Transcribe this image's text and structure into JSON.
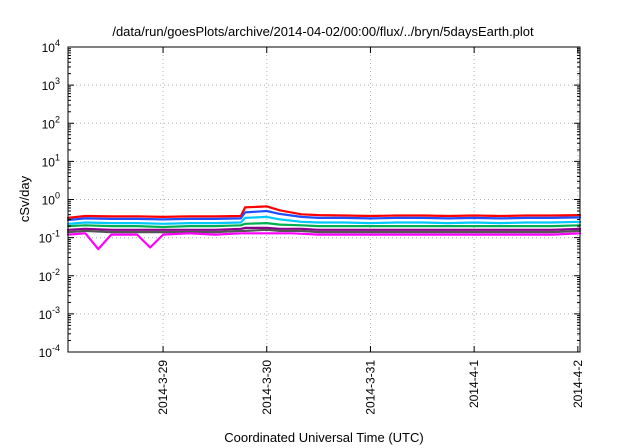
{
  "chart_data": {
    "type": "line",
    "title": "/data/run/goesPlots/archive/2014-04-02/00:00/flux/../bryn/5daysEarth.plot",
    "xlabel": "Coordinated Universal Time (UTC)",
    "ylabel": "cSv/day",
    "yscale": "log",
    "ylim": [
      0.0001,
      10000
    ],
    "y_ticks": [
      {
        "base": "10",
        "exp": "-4"
      },
      {
        "base": "10",
        "exp": "-3"
      },
      {
        "base": "10",
        "exp": "-2"
      },
      {
        "base": "10",
        "exp": "-1"
      },
      {
        "base": "10",
        "exp": "0"
      },
      {
        "base": "10",
        "exp": "1"
      },
      {
        "base": "10",
        "exp": "2"
      },
      {
        "base": "10",
        "exp": "3"
      },
      {
        "base": "10",
        "exp": "4"
      }
    ],
    "xlim": [
      "2014-03-28T02:00",
      "2014-04-02T00:30"
    ],
    "x_ticks": [
      "2014-3-29",
      "2014-3-30",
      "2014-3-31",
      "2014-4-1",
      "2014-4-2"
    ],
    "grid": true,
    "legend": "none",
    "series": [
      {
        "color": "#ff0000",
        "x": [
          "2014-03-28T02:00",
          "2014-03-28T06:00",
          "2014-03-28T12:00",
          "2014-03-28T18:00",
          "2014-03-29T00:00",
          "2014-03-29T06:00",
          "2014-03-29T12:00",
          "2014-03-29T18:00",
          "2014-03-29T19:00",
          "2014-03-30T00:00",
          "2014-03-30T03:00",
          "2014-03-30T08:00",
          "2014-03-30T12:00",
          "2014-03-30T18:00",
          "2014-03-31T00:00",
          "2014-03-31T06:00",
          "2014-03-31T12:00",
          "2014-03-31T18:00",
          "2014-04-01T00:00",
          "2014-04-01T06:00",
          "2014-04-01T12:00",
          "2014-04-01T18:00",
          "2014-04-02T00:30"
        ],
        "values": [
          0.33,
          0.37,
          0.36,
          0.36,
          0.35,
          0.36,
          0.36,
          0.37,
          0.62,
          0.66,
          0.52,
          0.41,
          0.39,
          0.38,
          0.37,
          0.38,
          0.38,
          0.37,
          0.38,
          0.37,
          0.38,
          0.38,
          0.39
        ]
      },
      {
        "color": "#1f4fff",
        "x": [
          "2014-03-28T02:00",
          "2014-03-28T06:00",
          "2014-03-28T12:00",
          "2014-03-28T18:00",
          "2014-03-29T00:00",
          "2014-03-29T06:00",
          "2014-03-29T12:00",
          "2014-03-29T18:00",
          "2014-03-29T19:00",
          "2014-03-30T00:00",
          "2014-03-30T03:00",
          "2014-03-30T08:00",
          "2014-03-30T12:00",
          "2014-03-30T18:00",
          "2014-03-31T00:00",
          "2014-03-31T06:00",
          "2014-03-31T12:00",
          "2014-03-31T18:00",
          "2014-04-01T00:00",
          "2014-04-01T06:00",
          "2014-04-01T12:00",
          "2014-04-01T18:00",
          "2014-04-02T00:30"
        ],
        "values": [
          0.29,
          0.32,
          0.31,
          0.31,
          0.3,
          0.31,
          0.31,
          0.32,
          0.46,
          0.5,
          0.42,
          0.35,
          0.33,
          0.33,
          0.32,
          0.33,
          0.33,
          0.32,
          0.33,
          0.32,
          0.33,
          0.33,
          0.34
        ]
      },
      {
        "color": "#00c8ff",
        "x": [
          "2014-03-28T02:00",
          "2014-03-28T06:00",
          "2014-03-28T12:00",
          "2014-03-28T18:00",
          "2014-03-29T00:00",
          "2014-03-29T06:00",
          "2014-03-29T12:00",
          "2014-03-29T18:00",
          "2014-03-29T19:00",
          "2014-03-30T00:00",
          "2014-03-30T03:00",
          "2014-03-30T08:00",
          "2014-03-30T12:00",
          "2014-03-30T18:00",
          "2014-03-31T00:00",
          "2014-03-31T06:00",
          "2014-03-31T12:00",
          "2014-03-31T18:00",
          "2014-04-01T00:00",
          "2014-04-01T06:00",
          "2014-04-01T12:00",
          "2014-04-01T18:00",
          "2014-04-02T00:30"
        ],
        "values": [
          0.23,
          0.25,
          0.24,
          0.24,
          0.23,
          0.24,
          0.24,
          0.25,
          0.33,
          0.35,
          0.3,
          0.26,
          0.25,
          0.25,
          0.24,
          0.25,
          0.25,
          0.24,
          0.25,
          0.24,
          0.25,
          0.25,
          0.26
        ]
      },
      {
        "color": "#00b050",
        "x": [
          "2014-03-28T02:00",
          "2014-03-28T06:00",
          "2014-03-28T12:00",
          "2014-03-28T18:00",
          "2014-03-29T00:00",
          "2014-03-29T06:00",
          "2014-03-29T12:00",
          "2014-03-29T18:00",
          "2014-03-29T19:00",
          "2014-03-30T00:00",
          "2014-03-30T03:00",
          "2014-03-30T08:00",
          "2014-03-30T12:00",
          "2014-03-30T18:00",
          "2014-03-31T00:00",
          "2014-03-31T06:00",
          "2014-03-31T12:00",
          "2014-03-31T18:00",
          "2014-04-01T00:00",
          "2014-04-01T06:00",
          "2014-04-01T12:00",
          "2014-04-01T18:00",
          "2014-04-02T00:30"
        ],
        "values": [
          0.2,
          0.21,
          0.2,
          0.2,
          0.19,
          0.2,
          0.2,
          0.21,
          0.23,
          0.24,
          0.22,
          0.21,
          0.2,
          0.2,
          0.2,
          0.2,
          0.2,
          0.2,
          0.2,
          0.2,
          0.2,
          0.2,
          0.21
        ]
      },
      {
        "color": "#8b008b",
        "x": [
          "2014-03-28T02:00",
          "2014-03-28T06:00",
          "2014-03-28T12:00",
          "2014-03-28T18:00",
          "2014-03-29T00:00",
          "2014-03-29T06:00",
          "2014-03-29T12:00",
          "2014-03-29T18:00",
          "2014-03-29T19:00",
          "2014-03-30T00:00",
          "2014-03-30T03:00",
          "2014-03-30T08:00",
          "2014-03-30T12:00",
          "2014-03-30T18:00",
          "2014-03-31T00:00",
          "2014-03-31T06:00",
          "2014-03-31T12:00",
          "2014-03-31T18:00",
          "2014-04-01T00:00",
          "2014-04-01T06:00",
          "2014-04-01T12:00",
          "2014-04-01T18:00",
          "2014-04-02T00:30"
        ],
        "values": [
          0.16,
          0.17,
          0.16,
          0.16,
          0.16,
          0.16,
          0.16,
          0.17,
          0.18,
          0.18,
          0.17,
          0.17,
          0.16,
          0.16,
          0.16,
          0.16,
          0.16,
          0.16,
          0.16,
          0.16,
          0.16,
          0.16,
          0.17
        ]
      },
      {
        "color": "#555555",
        "x": [
          "2014-03-28T02:00",
          "2014-03-28T06:00",
          "2014-03-28T12:00",
          "2014-03-28T18:00",
          "2014-03-29T00:00",
          "2014-03-29T06:00",
          "2014-03-29T12:00",
          "2014-03-29T18:00",
          "2014-03-29T19:00",
          "2014-03-30T00:00",
          "2014-03-30T03:00",
          "2014-03-30T08:00",
          "2014-03-30T12:00",
          "2014-03-30T18:00",
          "2014-03-31T00:00",
          "2014-03-31T06:00",
          "2014-03-31T12:00",
          "2014-03-31T18:00",
          "2014-04-01T00:00",
          "2014-04-01T06:00",
          "2014-04-01T12:00",
          "2014-04-01T18:00",
          "2014-04-02T00:30"
        ],
        "values": [
          0.14,
          0.15,
          0.14,
          0.14,
          0.14,
          0.14,
          0.14,
          0.15,
          0.15,
          0.16,
          0.15,
          0.15,
          0.14,
          0.14,
          0.14,
          0.14,
          0.14,
          0.14,
          0.14,
          0.14,
          0.14,
          0.14,
          0.15
        ]
      },
      {
        "color": "#ff00ff",
        "x": [
          "2014-03-28T02:00",
          "2014-03-28T06:00",
          "2014-03-28T09:00",
          "2014-03-28T12:00",
          "2014-03-28T18:00",
          "2014-03-28T21:00",
          "2014-03-29T00:00",
          "2014-03-29T06:00",
          "2014-03-29T12:00",
          "2014-03-29T18:00",
          "2014-03-30T00:00",
          "2014-03-30T06:00",
          "2014-03-30T12:00",
          "2014-03-30T18:00",
          "2014-03-31T00:00",
          "2014-03-31T06:00",
          "2014-03-31T12:00",
          "2014-03-31T18:00",
          "2014-04-01T00:00",
          "2014-04-01T06:00",
          "2014-04-01T12:00",
          "2014-04-01T18:00",
          "2014-04-02T00:30"
        ],
        "values": [
          0.12,
          0.13,
          0.05,
          0.12,
          0.12,
          0.055,
          0.12,
          0.13,
          0.12,
          0.13,
          0.13,
          0.13,
          0.12,
          0.12,
          0.12,
          0.12,
          0.12,
          0.12,
          0.12,
          0.12,
          0.12,
          0.12,
          0.13
        ]
      }
    ]
  }
}
